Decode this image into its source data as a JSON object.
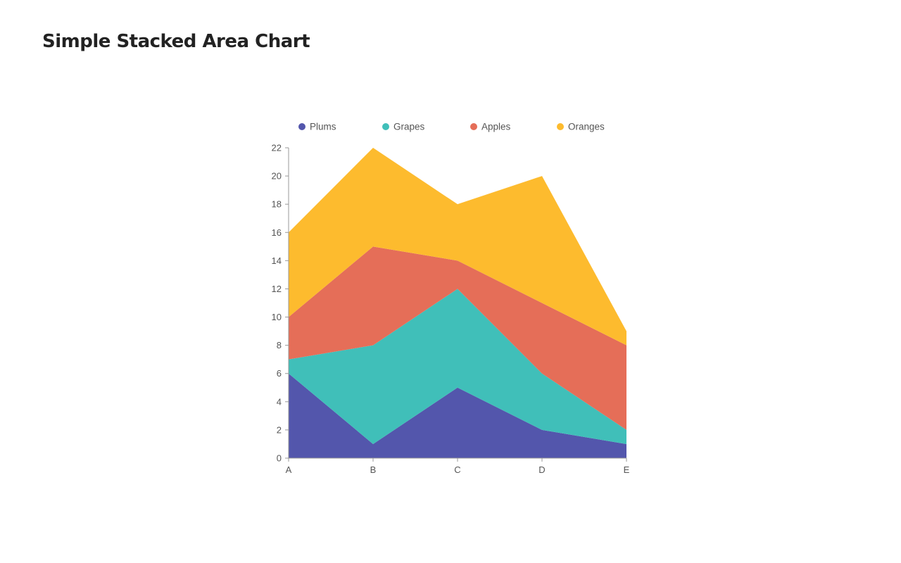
{
  "chart_data": {
    "type": "area",
    "stacked": true,
    "title": "Simple Stacked Area Chart",
    "categories": [
      "A",
      "B",
      "C",
      "D",
      "E"
    ],
    "series": [
      {
        "name": "Plums",
        "color": "#5356ac",
        "values": [
          6,
          1,
          5,
          2,
          1
        ]
      },
      {
        "name": "Grapes",
        "color": "#40bfb9",
        "values": [
          1,
          7,
          7,
          4,
          1
        ]
      },
      {
        "name": "Apples",
        "color": "#e56e58",
        "values": [
          3,
          7,
          2,
          5,
          6
        ]
      },
      {
        "name": "Oranges",
        "color": "#fdbb2e",
        "values": [
          6,
          7,
          4,
          9,
          1
        ]
      }
    ],
    "ylim": [
      0,
      22
    ],
    "yticks": [
      "0",
      "2",
      "4",
      "6",
      "8",
      "10",
      "12",
      "14",
      "16",
      "18",
      "20",
      "22"
    ],
    "grid": false,
    "legend": "top"
  }
}
